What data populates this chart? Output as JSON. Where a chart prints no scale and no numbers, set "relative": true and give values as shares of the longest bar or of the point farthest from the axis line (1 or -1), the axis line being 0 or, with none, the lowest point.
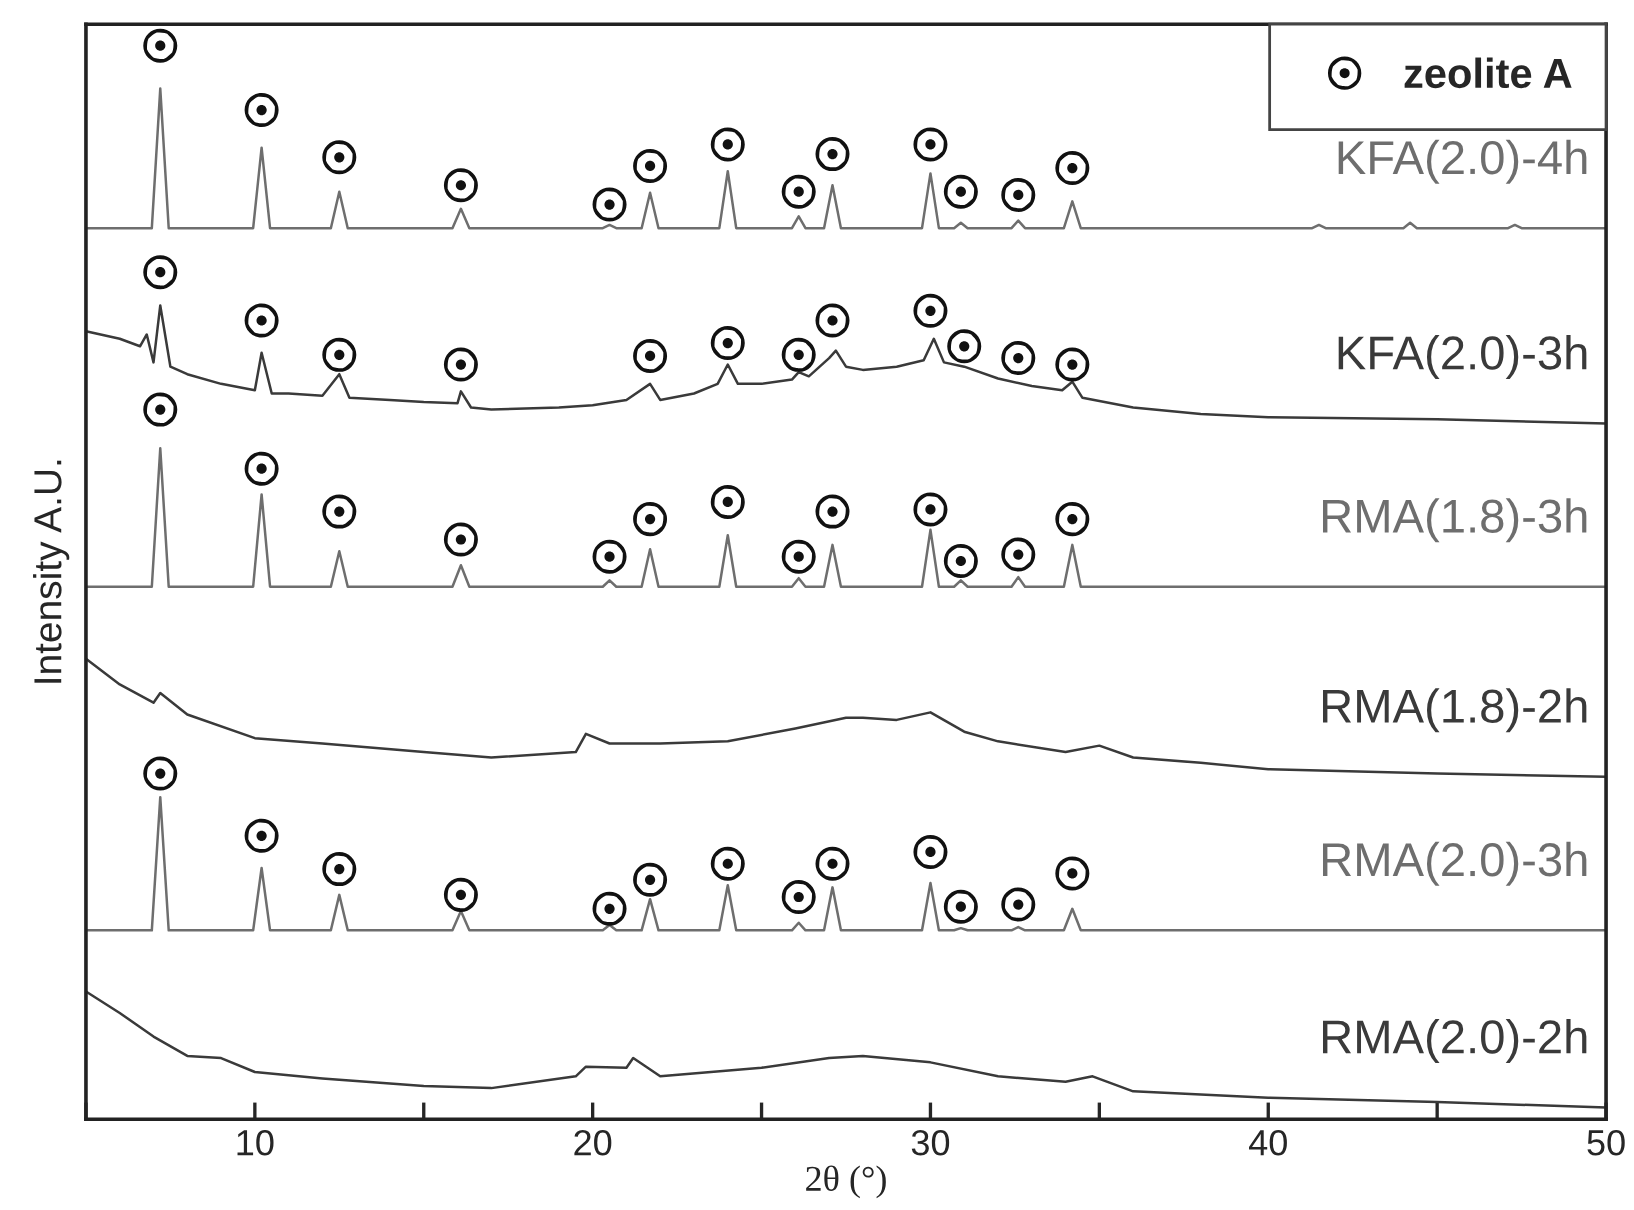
{
  "chart_data": {
    "type": "line",
    "relative": true,
    "xlabel": "2θ (°)",
    "ylabel": "Intensity A.U.",
    "xlim": [
      5,
      50
    ],
    "xticks": [
      {
        "value": 5,
        "label": null
      },
      10,
      {
        "value": 15,
        "label": null
      },
      20,
      {
        "value": 25,
        "label": null
      },
      30,
      {
        "value": 35,
        "label": null
      },
      40,
      {
        "value": 45,
        "label": null
      },
      50
    ],
    "tick_labels": "x",
    "grid": false,
    "legend": "top right",
    "series": [
      {
        "name": "KFA(2.0)-4h",
        "color": "#6e6e6e",
        "x": [
          5,
          6.95,
          7.2,
          7.45,
          9.95,
          10.2,
          10.45,
          12.25,
          12.5,
          12.75,
          15.85,
          16.1,
          16.35,
          20.3,
          20.5,
          20.7,
          21.45,
          21.7,
          21.95,
          23.75,
          24.0,
          24.25,
          25.9,
          26.1,
          26.3,
          26.85,
          27.1,
          27.35,
          29.75,
          30.0,
          30.25,
          30.7,
          30.9,
          31.1,
          32.4,
          32.6,
          32.8,
          33.95,
          34.2,
          34.45,
          41.3,
          41.5,
          41.7,
          44.0,
          44.2,
          44.4,
          47.1,
          47.3,
          47.5,
          50
        ],
        "values": [
          0.83,
          0.83,
          0.96,
          0.83,
          0.83,
          0.905,
          0.83,
          0.83,
          0.864,
          0.83,
          0.83,
          0.848,
          0.83,
          0.83,
          0.833,
          0.83,
          0.83,
          0.863,
          0.83,
          0.83,
          0.883,
          0.83,
          0.83,
          0.841,
          0.83,
          0.83,
          0.87,
          0.83,
          0.83,
          0.881,
          0.83,
          0.83,
          0.835,
          0.83,
          0.83,
          0.837,
          0.83,
          0.83,
          0.855,
          0.83,
          0.83,
          0.833,
          0.83,
          0.83,
          0.835,
          0.83,
          0.83,
          0.833,
          0.83,
          0.83
        ]
      },
      {
        "name": "KFA(2.0)-3h",
        "color": "#3a3a3a",
        "x": [
          5,
          6,
          6.6,
          6.8,
          7.0,
          7.2,
          7.5,
          8,
          9,
          10,
          10.2,
          10.5,
          11,
          12,
          12.5,
          12.8,
          14,
          15,
          16,
          16.1,
          16.4,
          17,
          19,
          20,
          21,
          21.7,
          22,
          23,
          23.7,
          24,
          24.3,
          25,
          25.9,
          26.1,
          26.4,
          27,
          27.2,
          27.5,
          28,
          29,
          29.8,
          30.1,
          30.4,
          31,
          32,
          33,
          33.9,
          34.2,
          34.5,
          36,
          38,
          40,
          45,
          50
        ],
        "values": [
          0.734,
          0.727,
          0.72,
          0.731,
          0.705,
          0.758,
          0.701,
          0.694,
          0.685,
          0.679,
          0.714,
          0.676,
          0.676,
          0.674,
          0.694,
          0.672,
          0.67,
          0.668,
          0.667,
          0.678,
          0.663,
          0.661,
          0.663,
          0.665,
          0.67,
          0.685,
          0.67,
          0.676,
          0.685,
          0.703,
          0.685,
          0.685,
          0.689,
          0.696,
          0.692,
          0.709,
          0.716,
          0.701,
          0.698,
          0.701,
          0.707,
          0.727,
          0.705,
          0.701,
          0.69,
          0.683,
          0.679,
          0.687,
          0.672,
          0.663,
          0.657,
          0.654,
          0.652,
          0.648
        ]
      },
      {
        "name": "RMA(1.8)-3h",
        "color": "#6e6e6e",
        "x": [
          5,
          6.95,
          7.2,
          7.45,
          9.95,
          10.2,
          10.45,
          12.25,
          12.5,
          12.75,
          15.85,
          16.1,
          16.35,
          20.3,
          20.5,
          20.7,
          21.45,
          21.7,
          21.95,
          23.75,
          24.0,
          24.25,
          25.9,
          26.1,
          26.3,
          26.85,
          27.1,
          27.35,
          29.75,
          30.0,
          30.25,
          30.7,
          30.9,
          31.1,
          32.4,
          32.6,
          32.8,
          33.95,
          34.2,
          34.45,
          50
        ],
        "values": [
          0.496,
          0.496,
          0.625,
          0.496,
          0.496,
          0.582,
          0.496,
          0.496,
          0.529,
          0.496,
          0.496,
          0.516,
          0.496,
          0.496,
          0.502,
          0.496,
          0.496,
          0.531,
          0.496,
          0.496,
          0.544,
          0.496,
          0.496,
          0.504,
          0.496,
          0.496,
          0.535,
          0.496,
          0.496,
          0.549,
          0.496,
          0.496,
          0.502,
          0.496,
          0.496,
          0.505,
          0.496,
          0.496,
          0.535,
          0.496,
          0.496
        ]
      },
      {
        "name": "RMA(1.8)-2h",
        "color": "#3a3a3a",
        "x": [
          5,
          6,
          7,
          7.2,
          8,
          10,
          12,
          15,
          17,
          19.5,
          19.8,
          20.5,
          22,
          24,
          26,
          27.5,
          28,
          29,
          30,
          31,
          32,
          34,
          35,
          36,
          38,
          40,
          45,
          50
        ],
        "values": [
          0.429,
          0.405,
          0.388,
          0.397,
          0.377,
          0.355,
          0.35,
          0.342,
          0.337,
          0.342,
          0.359,
          0.35,
          0.35,
          0.352,
          0.364,
          0.374,
          0.374,
          0.372,
          0.379,
          0.361,
          0.352,
          0.342,
          0.348,
          0.337,
          0.332,
          0.326,
          0.322,
          0.319
        ]
      },
      {
        "name": "RMA(2.0)-3h",
        "color": "#6e6e6e",
        "x": [
          5,
          6.95,
          7.2,
          7.45,
          9.95,
          10.2,
          10.45,
          12.25,
          12.5,
          12.75,
          15.85,
          16.1,
          16.35,
          20.3,
          20.5,
          20.7,
          21.45,
          21.7,
          21.95,
          23.75,
          24.0,
          24.25,
          25.9,
          26.1,
          26.3,
          26.85,
          27.1,
          27.35,
          29.75,
          30.0,
          30.25,
          30.7,
          30.9,
          31.1,
          32.4,
          32.6,
          32.8,
          33.95,
          34.2,
          34.45,
          50
        ],
        "values": [
          0.176,
          0.176,
          0.3,
          0.176,
          0.176,
          0.234,
          0.176,
          0.176,
          0.209,
          0.176,
          0.176,
          0.194,
          0.176,
          0.176,
          0.181,
          0.176,
          0.176,
          0.205,
          0.176,
          0.176,
          0.218,
          0.176,
          0.176,
          0.183,
          0.176,
          0.176,
          0.216,
          0.176,
          0.176,
          0.22,
          0.176,
          0.176,
          0.178,
          0.176,
          0.176,
          0.179,
          0.176,
          0.176,
          0.196,
          0.176,
          0.176
        ]
      },
      {
        "name": "RMA(2.0)-2h",
        "color": "#3a3a3a",
        "x": [
          5,
          6,
          7,
          8,
          9,
          10,
          12,
          15,
          17,
          19.5,
          19.8,
          21,
          21.2,
          22,
          25,
          27,
          28,
          30,
          32,
          34,
          34.8,
          36,
          40,
          45,
          50
        ],
        "values": [
          0.119,
          0.099,
          0.077,
          0.059,
          0.057,
          0.044,
          0.038,
          0.031,
          0.029,
          0.04,
          0.049,
          0.048,
          0.057,
          0.04,
          0.048,
          0.057,
          0.059,
          0.053,
          0.04,
          0.035,
          0.04,
          0.026,
          0.02,
          0.016,
          0.011
        ]
      },
      {
        "name": "zeolite A",
        "type": "scatter",
        "marker": "circle",
        "color": "#111111",
        "x": [
          7.2,
          10.2,
          12.5,
          16.1,
          20.5,
          21.7,
          24.0,
          26.1,
          27.1,
          30.0,
          30.9,
          32.6,
          34.2,
          7.2,
          10.2,
          12.5,
          16.1,
          21.7,
          24.0,
          26.1,
          27.1,
          30.0,
          31.0,
          32.6,
          34.2,
          7.2,
          10.2,
          12.5,
          16.1,
          20.5,
          21.7,
          24.0,
          26.1,
          27.1,
          30.0,
          30.9,
          32.6,
          34.2,
          7.2,
          10.2,
          12.5,
          16.1,
          20.5,
          21.7,
          24.0,
          26.1,
          27.1,
          30.0,
          30.9,
          32.6,
          34.2
        ],
        "values": [
          1.0,
          0.94,
          0.896,
          0.87,
          0.852,
          0.888,
          0.908,
          0.864,
          0.899,
          0.908,
          0.864,
          0.861,
          0.886,
          0.789,
          0.744,
          0.712,
          0.703,
          0.711,
          0.723,
          0.712,
          0.744,
          0.753,
          0.72,
          0.709,
          0.703,
          0.661,
          0.606,
          0.566,
          0.54,
          0.524,
          0.559,
          0.575,
          0.524,
          0.566,
          0.568,
          0.52,
          0.526,
          0.559,
          0.322,
          0.264,
          0.233,
          0.209,
          0.196,
          0.223,
          0.238,
          0.207,
          0.238,
          0.249,
          0.198,
          0.2,
          0.229
        ]
      }
    ]
  }
}
